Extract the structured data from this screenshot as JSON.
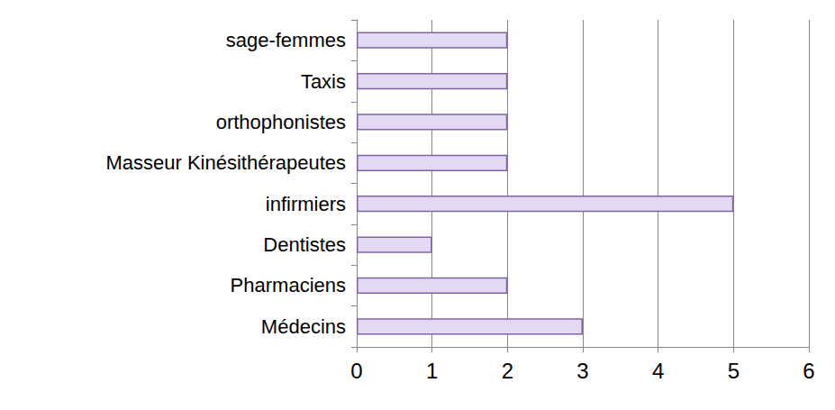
{
  "chart_data": {
    "type": "bar",
    "orientation": "horizontal",
    "categories": [
      "Médecins",
      "Pharmaciens",
      "Dentistes",
      "infirmiers",
      "Masseur Kinésithérapeutes",
      "orthophonistes",
      "Taxis",
      "sage-femmes"
    ],
    "values": [
      3,
      2,
      1,
      5,
      2,
      2,
      2,
      2
    ],
    "color": "#e3d9f5",
    "xlim": [
      0,
      6
    ],
    "xticks": [
      0,
      1,
      2,
      3,
      4,
      5,
      6
    ],
    "grid": true
  }
}
